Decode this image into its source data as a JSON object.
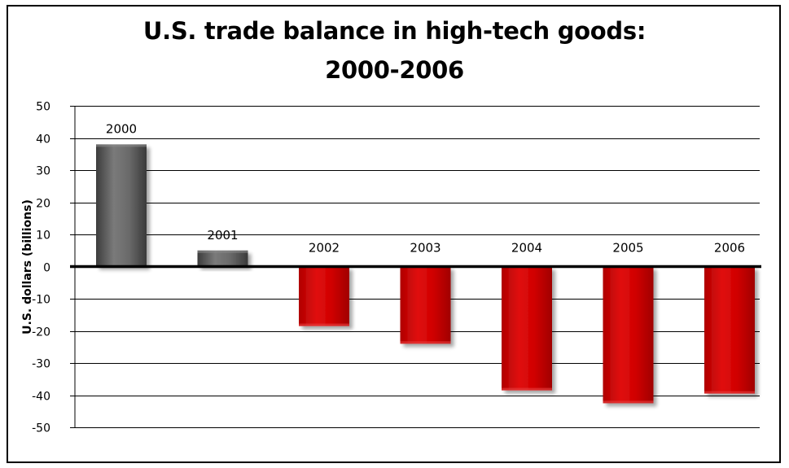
{
  "chart_data": {
    "type": "bar",
    "title_line1": "U.S. trade balance in high-tech goods:",
    "title_line2": "2000-2006",
    "ylabel": "U.S. dollars (billions)",
    "xlabel": "",
    "categories": [
      "2000",
      "2001",
      "2002",
      "2003",
      "2004",
      "2005",
      "2006"
    ],
    "values": [
      38,
      5,
      -18.5,
      -24,
      -38.5,
      -42.5,
      -39.5
    ],
    "ylim": [
      -50,
      50
    ],
    "yticks": [
      50,
      40,
      30,
      20,
      10,
      0,
      -10,
      -20,
      -30,
      -40,
      -50
    ],
    "grid": true,
    "legend": "none",
    "colors": {
      "positive": "#5a5a5a",
      "negative": "#cc0000",
      "zero_line": "#000000",
      "grid": "#000000"
    }
  }
}
